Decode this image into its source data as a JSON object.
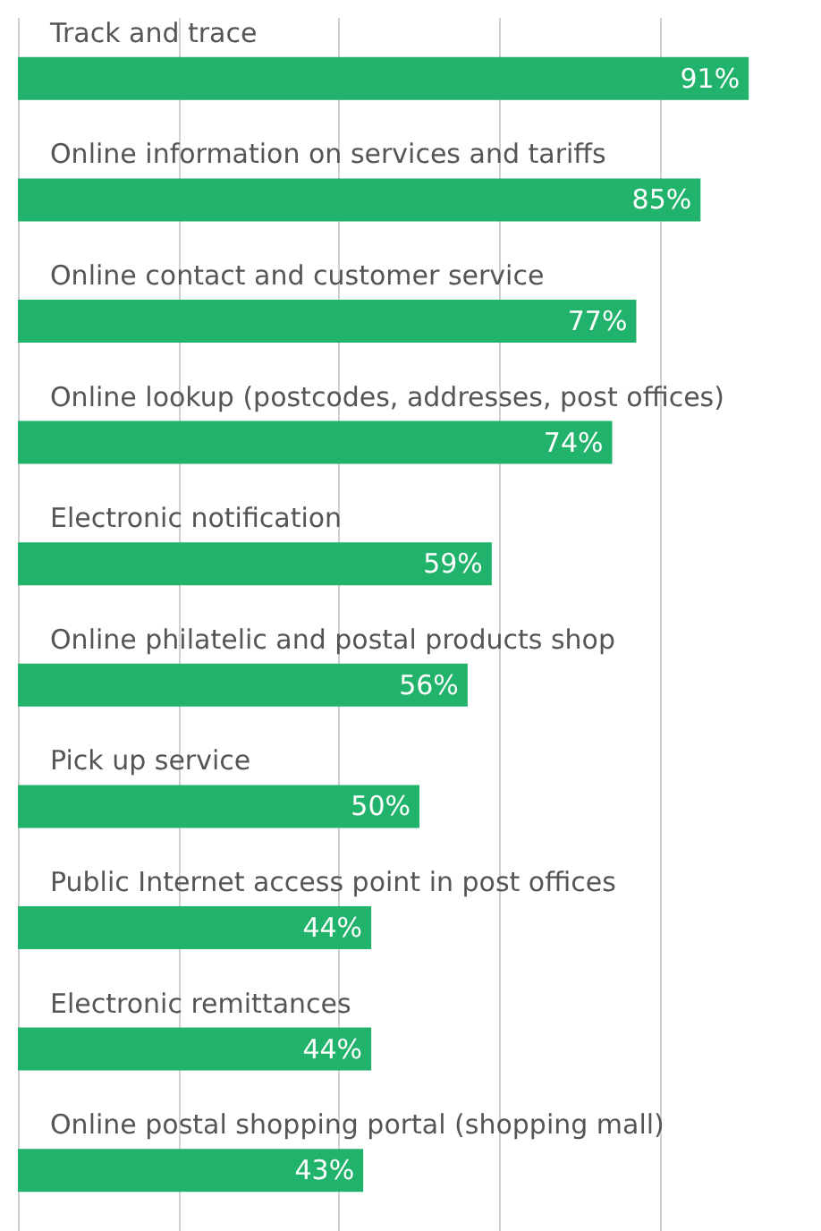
{
  "chart_data": {
    "type": "bar",
    "orientation": "horizontal",
    "categories": [
      "Track and trace",
      "Online information on services and tariffs",
      "Online contact and customer service",
      "Online lookup (postcodes, addresses, post offices)",
      "Electronic notification",
      "Online philatelic and postal products shop",
      "Pick up service",
      "Public Internet access point in post offices",
      "Electronic remittances",
      "Online postal shopping portal (shopping mall)"
    ],
    "values": [
      91,
      85,
      77,
      74,
      59,
      56,
      50,
      44,
      44,
      43
    ],
    "value_labels": [
      "91%",
      "85%",
      "77%",
      "74%",
      "59%",
      "56%",
      "50%",
      "44%",
      "44%",
      "43%"
    ],
    "color": "#21b36b",
    "grid": "x",
    "tick_labels": "y"
  }
}
